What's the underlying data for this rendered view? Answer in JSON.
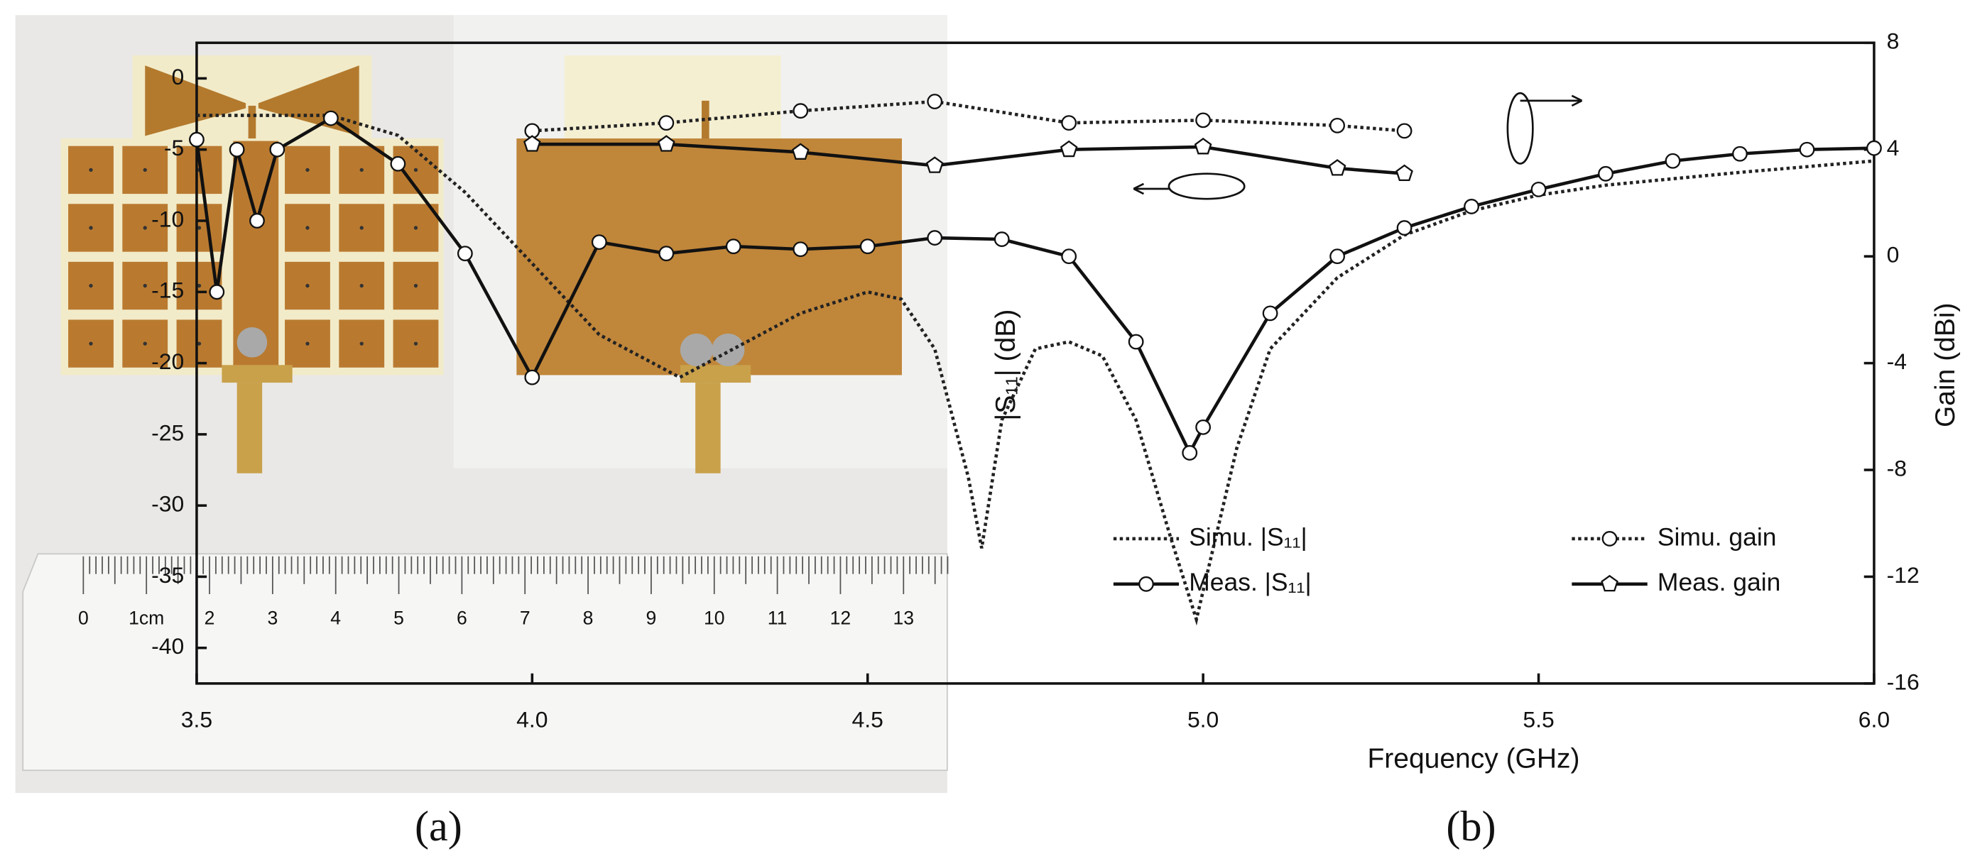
{
  "figure": {
    "panel_a": {
      "caption": "(a)",
      "ruler_labels": [
        0,
        "1cm",
        2,
        3,
        4,
        5,
        6,
        7,
        8,
        9,
        10,
        11,
        12,
        13
      ]
    },
    "panel_b": {
      "caption": "(b)"
    }
  },
  "chart_data": {
    "type": "line",
    "x_label": "Frequency (GHz)",
    "y_label": "|S₁₁| (dB)",
    "y2_label": "Gain (dBi)",
    "xlim": [
      3.5,
      6.0
    ],
    "xticks": [
      3.5,
      {
        "value": 4,
        "label": "4.0"
      },
      4.5,
      {
        "value": 5,
        "label": "5.0"
      },
      5.5,
      {
        "value": 6,
        "label": "6.0"
      }
    ],
    "ylim": [
      -42.5,
      2.5
    ],
    "yticks": [
      0,
      -5,
      -10,
      -15,
      -20,
      -25,
      -30,
      -35,
      -40
    ],
    "y2lim": [
      -16,
      8
    ],
    "y2ticks": [
      8,
      4,
      0,
      -4,
      -8,
      -12,
      -16
    ],
    "series": [
      {
        "name": "Simu. |S₁₁|",
        "color": "#222222",
        "style": "dotted",
        "marker": "none",
        "x": [
          3.5,
          3.7,
          3.8,
          3.9,
          4.0,
          4.1,
          4.22,
          4.3,
          4.4,
          4.5,
          4.55,
          4.6,
          4.65,
          4.67,
          4.7,
          4.75,
          4.8,
          4.85,
          4.9,
          4.95,
          4.99,
          5.05,
          5.1,
          5.2,
          5.3,
          5.4,
          5.5,
          5.6,
          5.8,
          6.0
        ],
        "values": [
          -2.6,
          -2.6,
          -4,
          -8,
          -13,
          -18,
          -21,
          -19,
          -16.5,
          -15,
          -15.5,
          -19,
          -28,
          -33,
          -24,
          -19,
          -18.5,
          -19.5,
          -24,
          -32,
          -38,
          -26,
          -19,
          -14,
          -11,
          -9.3,
          -8.2,
          -7.5,
          -6.6,
          -5.8
        ]
      },
      {
        "name": "Meas. |S₁₁|",
        "color": "#111111",
        "style": "solid",
        "marker": "circle",
        "x": [
          3.5,
          3.53,
          3.56,
          3.59,
          3.62,
          3.7,
          3.8,
          3.9,
          4.0,
          4.1,
          4.2,
          4.3,
          4.4,
          4.5,
          4.6,
          4.7,
          4.8,
          4.9,
          4.98,
          5.0,
          5.1,
          5.2,
          5.3,
          5.4,
          5.5,
          5.6,
          5.7,
          5.8,
          5.9,
          6.0
        ],
        "values": [
          -4.3,
          -15,
          -5,
          -10,
          -5,
          -2.8,
          -6,
          -12.3,
          -21,
          -11.5,
          -12.3,
          -11.8,
          -12,
          -11.8,
          -11.2,
          -11.3,
          -12.5,
          -18.5,
          -26.3,
          -24.5,
          -16.5,
          -12.5,
          -10.5,
          -9,
          -7.8,
          -6.7,
          -5.8,
          -5.3,
          -5,
          -4.9
        ]
      },
      {
        "name": "Simu. gain",
        "color": "#222222",
        "style": "dotted",
        "marker": "circle",
        "axis": "y2",
        "x": [
          4.0,
          4.2,
          4.4,
          4.6,
          4.8,
          5.0,
          5.2,
          5.3
        ],
        "values": [
          4.7,
          5.0,
          5.45,
          5.8,
          5.0,
          5.1,
          4.9,
          4.7
        ]
      },
      {
        "name": "Meas. gain",
        "color": "#111111",
        "style": "solid",
        "marker": "pentagon",
        "axis": "y2",
        "x": [
          4.0,
          4.2,
          4.4,
          4.6,
          4.8,
          5.0,
          5.2,
          5.3
        ],
        "values": [
          4.2,
          4.2,
          3.9,
          3.4,
          4.0,
          4.1,
          3.3,
          3.1
        ]
      }
    ]
  }
}
